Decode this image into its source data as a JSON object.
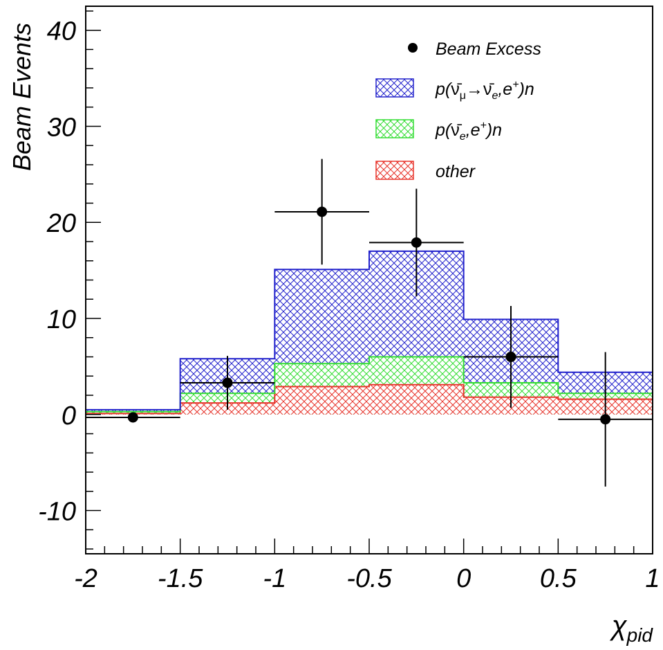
{
  "chart_data": {
    "type": "histogram",
    "xlabel": "χ",
    "xlabel_sub": "pid",
    "ylabel": "Beam Events",
    "xlim": [
      -2,
      1
    ],
    "ylim": [
      -14.5,
      42.5
    ],
    "x_ticks": [
      -2,
      -1.5,
      -1,
      -0.5,
      0,
      0.5,
      1
    ],
    "x_tick_labels": [
      "-2",
      "-1.5",
      "-1",
      "-0.5",
      "0",
      "0.5",
      "1"
    ],
    "y_ticks": [
      -10,
      0,
      10,
      20,
      30,
      40
    ],
    "y_tick_labels": [
      "-10",
      "0",
      "10",
      "20",
      "30",
      "40"
    ],
    "bin_edges": [
      -2,
      -1.5,
      -1,
      -0.5,
      0,
      0.5,
      1
    ],
    "stack": [
      {
        "name": "other",
        "color": "#e8332a",
        "values": [
          0.1,
          1.2,
          2.9,
          3.1,
          1.8,
          1.6
        ]
      },
      {
        "name": "p(ν̄e,e+)n",
        "color": "#33dd33",
        "values": [
          0.2,
          1.0,
          2.4,
          2.9,
          1.5,
          0.6
        ]
      },
      {
        "name": "p(ν̄μ→ν̄e,e+)n",
        "color": "#2222cc",
        "values": [
          0.2,
          3.6,
          9.8,
          11.0,
          6.6,
          2.2
        ]
      }
    ],
    "series": [
      {
        "name": "Beam Excess",
        "x": [
          -1.75,
          -1.25,
          -0.75,
          -0.25,
          0.25,
          0.75
        ],
        "y": [
          -0.3,
          3.3,
          21.1,
          17.9,
          6.0,
          -0.5
        ],
        "x_err": [
          0.25,
          0.25,
          0.25,
          0.25,
          0.25,
          0.25
        ],
        "y_err": [
          0.0,
          2.8,
          5.5,
          5.6,
          5.3,
          7.0
        ]
      }
    ],
    "legend": {
      "position": "top-right",
      "entries": [
        {
          "kind": "marker",
          "text": "Beam Excess"
        },
        {
          "kind": "hatch",
          "color": "#2222cc",
          "pre": "p(",
          "nu1": "ν̄",
          "nu1_sub": "μ",
          "arrow": "→",
          "nu2": "ν̄",
          "nu2_sub": "e",
          "post1": ",e",
          "post1_sup": "+",
          "post2": ")n"
        },
        {
          "kind": "hatch",
          "color": "#33dd33",
          "pre": "p(",
          "nu1": "ν̄",
          "nu1_sub": "e",
          "post1": ",e",
          "post1_sup": "+",
          "post2": ")n"
        },
        {
          "kind": "hatch",
          "color": "#e8332a",
          "text": "other"
        }
      ]
    },
    "grid": false
  }
}
